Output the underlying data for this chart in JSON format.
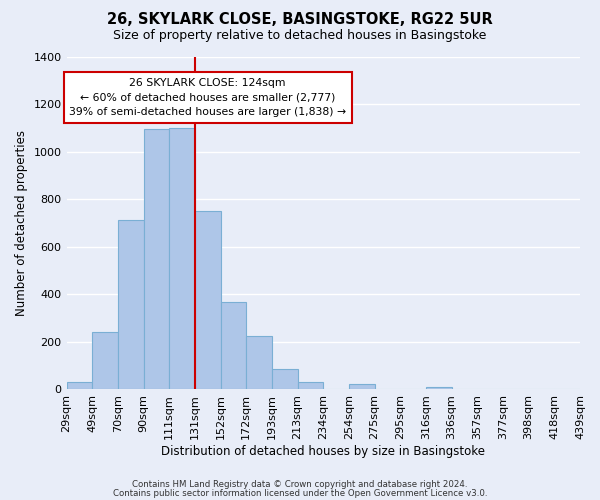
{
  "title": "26, SKYLARK CLOSE, BASINGSTOKE, RG22 5UR",
  "subtitle": "Size of property relative to detached houses in Basingstoke",
  "xlabel": "Distribution of detached houses by size in Basingstoke",
  "ylabel": "Number of detached properties",
  "bin_labels": [
    "29sqm",
    "49sqm",
    "70sqm",
    "90sqm",
    "111sqm",
    "131sqm",
    "152sqm",
    "172sqm",
    "193sqm",
    "213sqm",
    "234sqm",
    "254sqm",
    "275sqm",
    "295sqm",
    "316sqm",
    "336sqm",
    "357sqm",
    "377sqm",
    "398sqm",
    "418sqm",
    "439sqm"
  ],
  "bar_values": [
    30,
    240,
    710,
    1095,
    1100,
    750,
    365,
    225,
    85,
    30,
    0,
    20,
    0,
    0,
    10,
    0,
    0,
    0,
    0,
    0
  ],
  "bar_color": "#aec6e8",
  "bar_edge_color": "#7aafd4",
  "vline_x_index": 4,
  "vline_color": "#cc0000",
  "annotation_title": "26 SKYLARK CLOSE: 124sqm",
  "annotation_line1": "← 60% of detached houses are smaller (2,777)",
  "annotation_line2": "39% of semi-detached houses are larger (1,838) →",
  "annotation_box_color": "#ffffff",
  "annotation_box_edge": "#cc0000",
  "ylim": [
    0,
    1400
  ],
  "footer1": "Contains HM Land Registry data © Crown copyright and database right 2024.",
  "footer2": "Contains public sector information licensed under the Open Government Licence v3.0.",
  "background_color": "#e8edf8",
  "plot_bg_color": "#e8edf8"
}
